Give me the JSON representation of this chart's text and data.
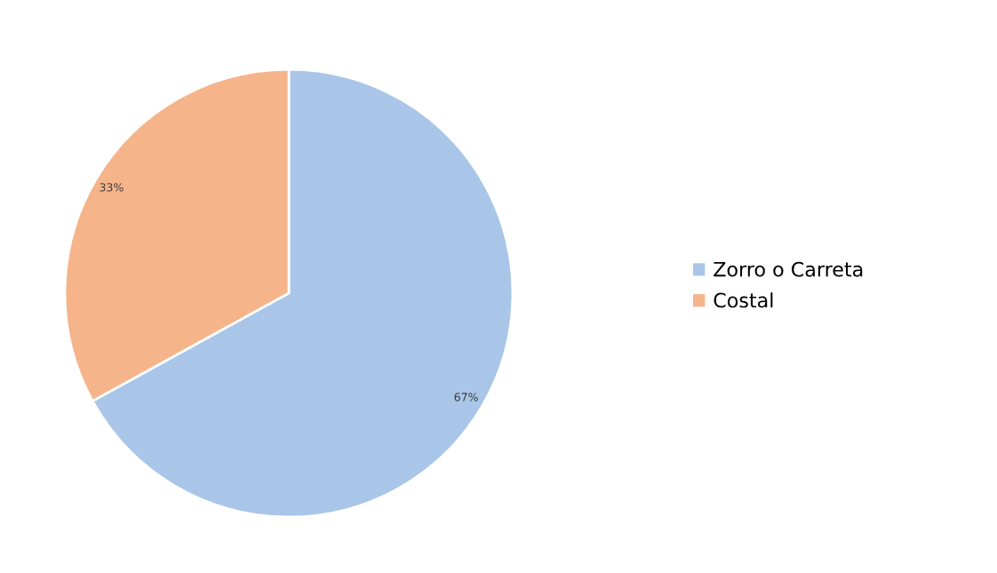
{
  "chart_data": {
    "type": "pie",
    "categories": [
      "Zorro o Carreta",
      "Costal"
    ],
    "values": [
      67,
      33
    ],
    "colors": [
      "#a9c6e9",
      "#f5b48a"
    ],
    "value_labels": [
      "67%",
      "33%"
    ],
    "legend": "right"
  }
}
